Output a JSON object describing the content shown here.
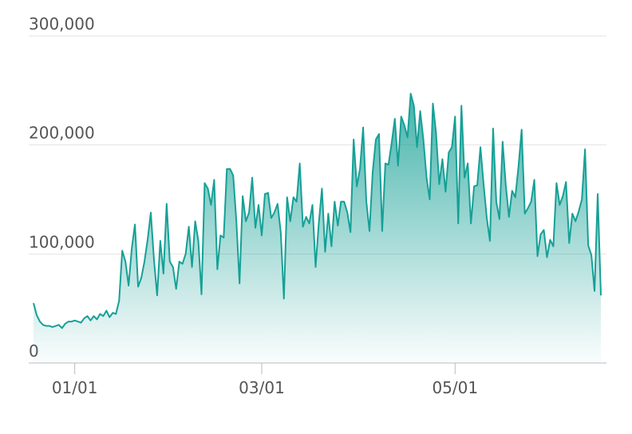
{
  "chart_data": {
    "type": "area",
    "x": [
      "12/19",
      "12/20",
      "12/21",
      "12/22",
      "12/23",
      "12/24",
      "12/25",
      "12/26",
      "12/27",
      "12/28",
      "12/29",
      "12/30",
      "12/31",
      "01/01",
      "01/02",
      "01/03",
      "01/04",
      "01/05",
      "01/06",
      "01/07",
      "01/08",
      "01/09",
      "01/10",
      "01/11",
      "01/12",
      "01/13",
      "01/14",
      "01/15",
      "01/16",
      "01/17",
      "01/18",
      "01/19",
      "01/20",
      "01/21",
      "01/22",
      "01/23",
      "01/24",
      "01/25",
      "01/26",
      "01/27",
      "01/28",
      "01/29",
      "01/30",
      "01/31",
      "02/01",
      "02/02",
      "02/03",
      "02/04",
      "02/05",
      "02/06",
      "02/07",
      "02/08",
      "02/09",
      "02/10",
      "02/11",
      "02/12",
      "02/13",
      "02/14",
      "02/15",
      "02/16",
      "02/17",
      "02/18",
      "02/19",
      "02/20",
      "02/21",
      "02/22",
      "02/23",
      "02/24",
      "02/25",
      "02/26",
      "02/27",
      "02/28",
      "03/01",
      "03/02",
      "03/03",
      "03/04",
      "03/05",
      "03/06",
      "03/07",
      "03/08",
      "03/09",
      "03/10",
      "03/11",
      "03/12",
      "03/13",
      "03/14",
      "03/15",
      "03/16",
      "03/17",
      "03/18",
      "03/19",
      "03/20",
      "03/21",
      "03/22",
      "03/23",
      "03/24",
      "03/25",
      "03/26",
      "03/27",
      "03/28",
      "03/29",
      "03/30",
      "03/31",
      "04/01",
      "04/02",
      "04/03",
      "04/04",
      "04/05",
      "04/06",
      "04/07",
      "04/08",
      "04/09",
      "04/10",
      "04/11",
      "04/12",
      "04/13",
      "04/14",
      "04/15",
      "04/16",
      "04/17",
      "04/18",
      "04/19",
      "04/20",
      "04/21",
      "04/22",
      "04/23",
      "04/24",
      "04/25",
      "04/26",
      "04/27",
      "04/28",
      "04/29",
      "04/30",
      "05/01",
      "05/02",
      "05/03",
      "05/04",
      "05/05",
      "05/06",
      "05/07",
      "05/08",
      "05/09",
      "05/10",
      "05/11",
      "05/12",
      "05/13",
      "05/14",
      "05/15",
      "05/16",
      "05/17",
      "05/18",
      "05/19",
      "05/20",
      "05/21",
      "05/22",
      "05/23",
      "05/24",
      "05/25",
      "05/26",
      "05/27",
      "05/28",
      "05/29",
      "05/30",
      "05/31",
      "06/01",
      "06/02",
      "06/03",
      "06/04",
      "06/05",
      "06/06",
      "06/07",
      "06/08",
      "06/09",
      "06/10",
      "06/11",
      "06/12",
      "06/13",
      "06/14",
      "06/15",
      "06/16"
    ],
    "values": [
      55000,
      44000,
      38000,
      35000,
      34000,
      34000,
      33000,
      34000,
      35000,
      32000,
      36000,
      38000,
      38000,
      39000,
      38000,
      37000,
      41000,
      43000,
      39000,
      43000,
      40000,
      45000,
      43000,
      48000,
      42000,
      46000,
      45000,
      57000,
      103000,
      93000,
      71000,
      105000,
      127000,
      70000,
      78000,
      93000,
      113000,
      138000,
      95000,
      62000,
      112000,
      82000,
      146000,
      93000,
      88000,
      68000,
      93000,
      91000,
      100000,
      125000,
      88000,
      130000,
      112000,
      63000,
      165000,
      160000,
      145000,
      168000,
      86000,
      117000,
      115000,
      178000,
      178000,
      172000,
      130000,
      73000,
      153000,
      130000,
      138000,
      170000,
      124000,
      145000,
      117000,
      155000,
      156000,
      133000,
      138000,
      146000,
      120000,
      59000,
      152000,
      130000,
      152000,
      148000,
      183000,
      125000,
      134000,
      128000,
      145000,
      88000,
      128000,
      160000,
      102000,
      137000,
      107000,
      148000,
      126000,
      148000,
      148000,
      138000,
      120000,
      205000,
      162000,
      178000,
      216000,
      148000,
      121000,
      175000,
      205000,
      210000,
      121000,
      183000,
      182000,
      202000,
      224000,
      181000,
      226000,
      218000,
      207000,
      247000,
      236000,
      198000,
      231000,
      205000,
      170000,
      150000,
      238000,
      211000,
      164000,
      187000,
      157000,
      193000,
      198000,
      226000,
      128000,
      236000,
      170000,
      183000,
      128000,
      162000,
      163000,
      198000,
      164000,
      133000,
      112000,
      215000,
      148000,
      132000,
      203000,
      163000,
      134000,
      158000,
      152000,
      180000,
      214000,
      137000,
      142000,
      148000,
      168000,
      98000,
      118000,
      122000,
      97000,
      113000,
      107000,
      165000,
      145000,
      153000,
      166000,
      110000,
      137000,
      130000,
      139000,
      150000,
      196000,
      108000,
      99000,
      66000,
      155000,
      62000
    ],
    "color": "#16a096",
    "ylim": [
      0,
      300000
    ],
    "yticks": [
      0,
      {
        "value": 100000,
        "label": "100,000"
      },
      {
        "value": 200000,
        "label": "200,000"
      },
      {
        "value": 300000,
        "label": "300,000"
      }
    ],
    "xticks": [
      "01/01",
      "03/01",
      "05/01"
    ],
    "grid": true
  }
}
